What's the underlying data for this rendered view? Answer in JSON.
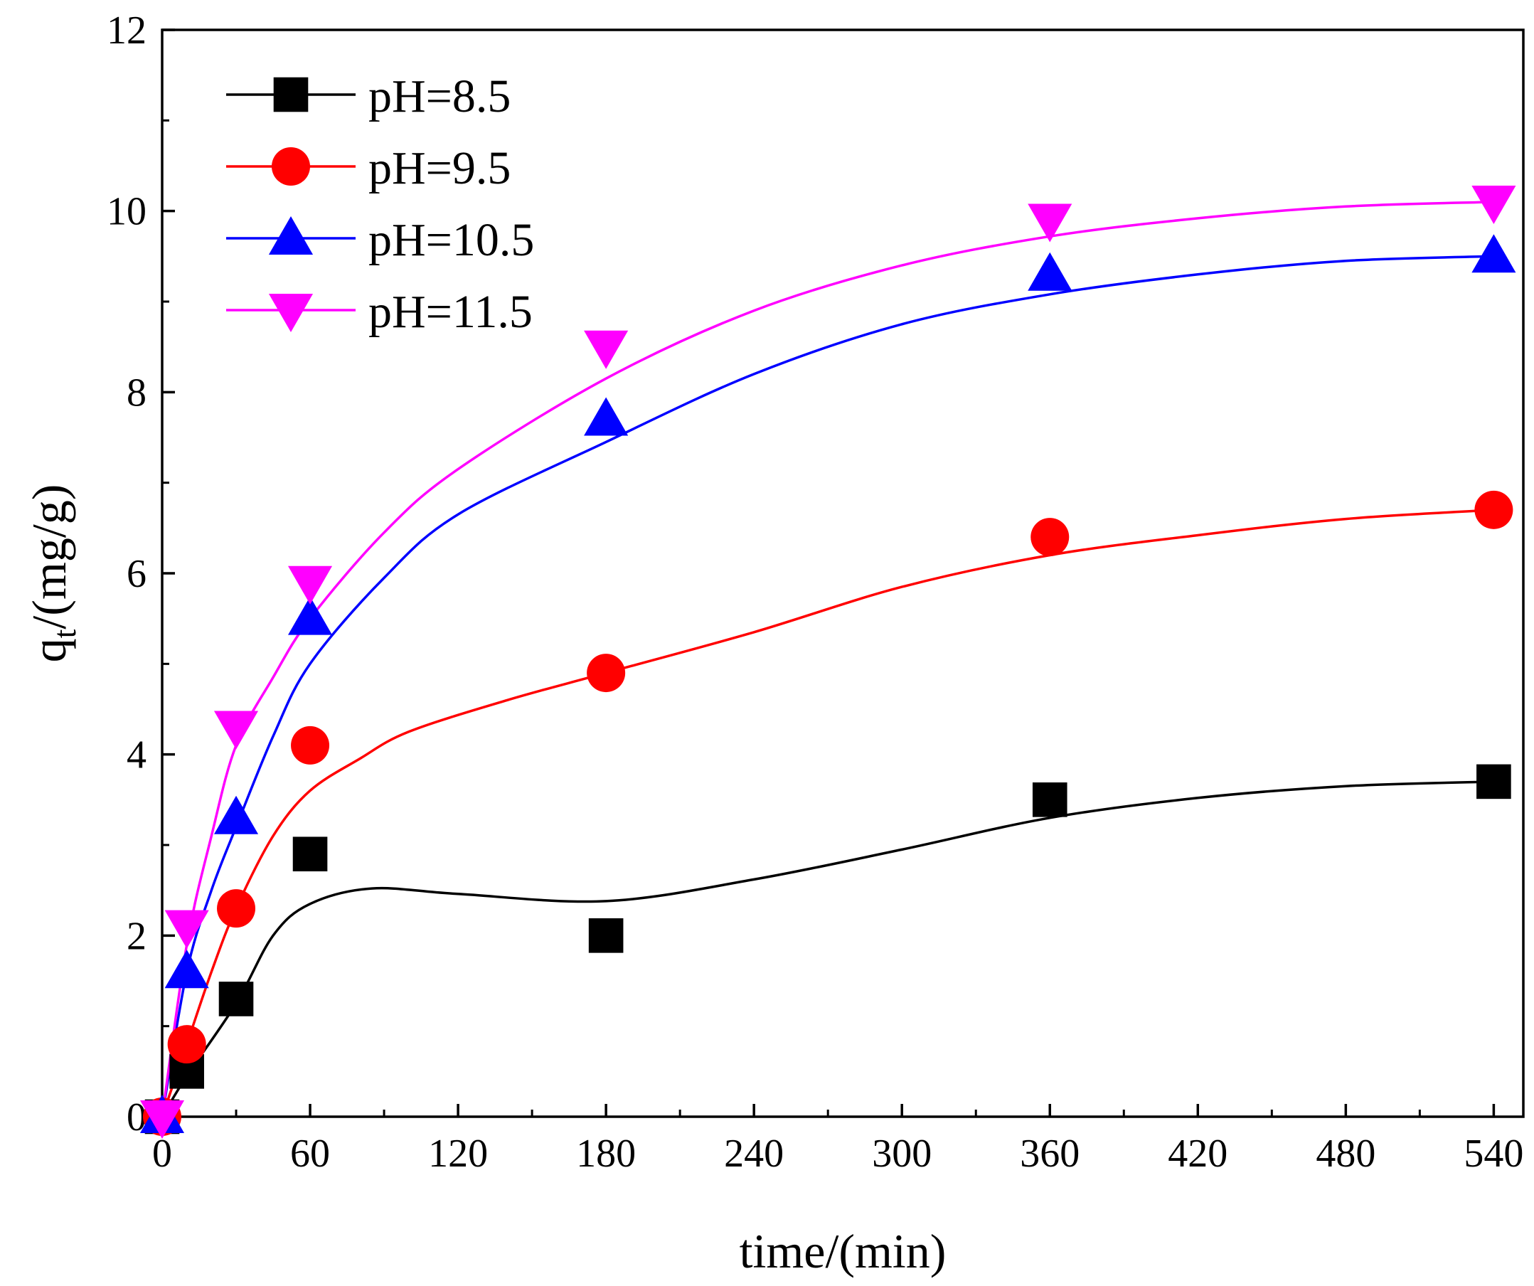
{
  "chart_data": {
    "type": "scatter",
    "title": "",
    "xlabel": "time/(min)",
    "ylabel": "q",
    "ylabel_subscript": "t",
    "ylabel_suffix": "/(mg/g)",
    "xlim": [
      0,
      552
    ],
    "ylim": [
      0,
      12
    ],
    "xticks": [
      0,
      60,
      120,
      180,
      240,
      300,
      360,
      420,
      480,
      540
    ],
    "yticks": [
      0,
      2,
      4,
      6,
      8,
      10,
      12
    ],
    "grid": false,
    "legend_position": "top-left",
    "x": [
      0,
      10,
      30,
      60,
      180,
      360,
      540
    ],
    "series": [
      {
        "name": "pH=8.5",
        "color": "#000000",
        "marker": "square",
        "values": [
          0,
          0.5,
          1.3,
          2.9,
          2.0,
          3.5,
          3.7
        ],
        "fit": [
          [
            0,
            0
          ],
          [
            10,
            0.45
          ],
          [
            30,
            1.25
          ],
          [
            45,
            2.0
          ],
          [
            60,
            2.35
          ],
          [
            85,
            2.52
          ],
          [
            120,
            2.46
          ],
          [
            180,
            2.38
          ],
          [
            240,
            2.62
          ],
          [
            300,
            2.95
          ],
          [
            360,
            3.3
          ],
          [
            420,
            3.52
          ],
          [
            480,
            3.65
          ],
          [
            540,
            3.7
          ]
        ]
      },
      {
        "name": "pH=9.5",
        "color": "#ff0000",
        "marker": "circle",
        "values": [
          0,
          0.8,
          2.3,
          4.1,
          4.9,
          6.4,
          6.7
        ],
        "fit": [
          [
            0,
            0
          ],
          [
            10,
            0.8
          ],
          [
            20,
            1.6
          ],
          [
            30,
            2.3
          ],
          [
            45,
            3.1
          ],
          [
            60,
            3.6
          ],
          [
            80,
            3.95
          ],
          [
            100,
            4.25
          ],
          [
            140,
            4.6
          ],
          [
            180,
            4.9
          ],
          [
            240,
            5.35
          ],
          [
            300,
            5.85
          ],
          [
            360,
            6.2
          ],
          [
            420,
            6.42
          ],
          [
            480,
            6.6
          ],
          [
            540,
            6.7
          ]
        ]
      },
      {
        "name": "pH=10.5",
        "color": "#0000ff",
        "marker": "triangle-up",
        "values": [
          0,
          1.6,
          3.3,
          5.5,
          7.7,
          9.3,
          9.5
        ],
        "fit": [
          [
            0,
            0
          ],
          [
            10,
            1.6
          ],
          [
            20,
            2.5
          ],
          [
            30,
            3.2
          ],
          [
            45,
            4.2
          ],
          [
            60,
            5.0
          ],
          [
            90,
            5.95
          ],
          [
            120,
            6.65
          ],
          [
            180,
            7.45
          ],
          [
            240,
            8.2
          ],
          [
            300,
            8.75
          ],
          [
            360,
            9.08
          ],
          [
            420,
            9.3
          ],
          [
            480,
            9.45
          ],
          [
            540,
            9.5
          ]
        ]
      },
      {
        "name": "pH=11.5",
        "color": "#ff00ff",
        "marker": "triangle-down",
        "values": [
          0,
          2.1,
          4.3,
          5.9,
          8.5,
          9.9,
          10.1
        ],
        "fit": [
          [
            0,
            0
          ],
          [
            10,
            1.9
          ],
          [
            20,
            3.1
          ],
          [
            30,
            4.1
          ],
          [
            45,
            4.85
          ],
          [
            60,
            5.5
          ],
          [
            90,
            6.45
          ],
          [
            120,
            7.15
          ],
          [
            180,
            8.15
          ],
          [
            240,
            8.9
          ],
          [
            300,
            9.4
          ],
          [
            360,
            9.72
          ],
          [
            420,
            9.92
          ],
          [
            480,
            10.05
          ],
          [
            540,
            10.1
          ]
        ]
      }
    ]
  }
}
